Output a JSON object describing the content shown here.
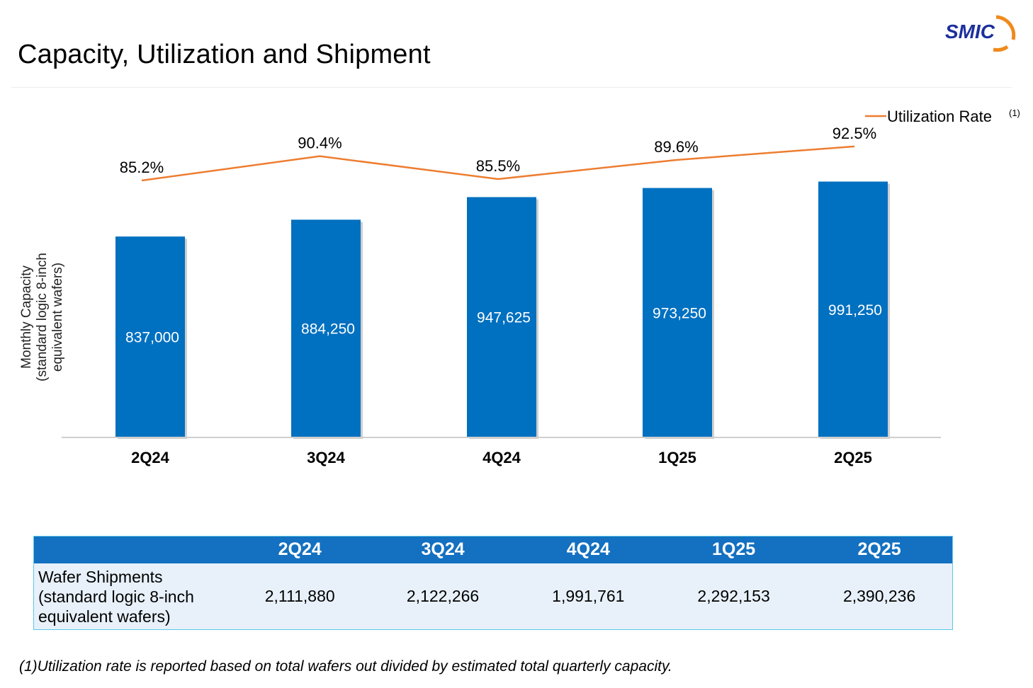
{
  "page": {
    "title": "Capacity, Utilization and Shipment",
    "logo_text": "SMIC",
    "footnote": "(1)Utilization rate is reported based on total wafers out divided by estimated total quarterly capacity."
  },
  "colors": {
    "bar": "#0070c0",
    "line": "#ed7d31",
    "table_header": "#1470c0",
    "table_body": "#e8f1fa",
    "table_border": "#5ec7e8"
  },
  "chart_data": {
    "type": "bar",
    "categories": [
      "2Q24",
      "3Q24",
      "4Q24",
      "1Q25",
      "2Q25"
    ],
    "ylabel": [
      "Monthly Capacity",
      "(standard logic 8-inch",
      "equivalent wafers)"
    ],
    "series": [
      {
        "type": "bar",
        "values": [
          837000,
          884250,
          947625,
          973250,
          991250
        ],
        "labels": [
          "837,000",
          "884,250",
          "947,625",
          "973,250",
          "991,250"
        ]
      },
      {
        "type": "line",
        "name": "Utilization Rate",
        "name_note": "(1)",
        "values": [
          85.2,
          90.4,
          85.5,
          89.6,
          92.5
        ],
        "labels": [
          "85.2%",
          "90.4%",
          "85.5%",
          "89.6%",
          "92.5%"
        ]
      }
    ],
    "legend": "top-right",
    "grid": false
  },
  "table": {
    "headers": [
      "",
      "2Q24",
      "3Q24",
      "4Q24",
      "1Q25",
      "2Q25"
    ],
    "row_label": [
      "Wafer Shipments",
      "(standard logic 8-inch",
      "equivalent wafers)"
    ],
    "values": [
      "2,111,880",
      "2,122,266",
      "1,991,761",
      "2,292,153",
      "2,390,236"
    ]
  }
}
